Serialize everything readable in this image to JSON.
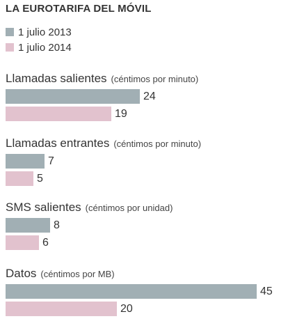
{
  "chart_data": {
    "type": "bar",
    "orientation": "horizontal",
    "title": "LA EUROTARIFA DEL MÓVIL",
    "series": [
      {
        "name": "1 julio 2013",
        "color": "#a1afb4"
      },
      {
        "name": "1 julio 2014",
        "color": "#e2c2ce"
      }
    ],
    "groups": [
      {
        "label": "Llamadas salientes",
        "unit": "(céntimos por minuto)",
        "values": [
          24,
          19
        ]
      },
      {
        "label": "Llamadas entrantes",
        "unit": "(céntimos por minuto)",
        "values": [
          7,
          5
        ]
      },
      {
        "label": "SMS salientes",
        "unit": "(céntimos por unidad)",
        "values": [
          8,
          6
        ]
      },
      {
        "label": "Datos",
        "unit": "(céntimos por MB)",
        "values": [
          45,
          20
        ]
      }
    ],
    "xlim": [
      0,
      45
    ],
    "grid": false,
    "legend_position": "top-left"
  }
}
